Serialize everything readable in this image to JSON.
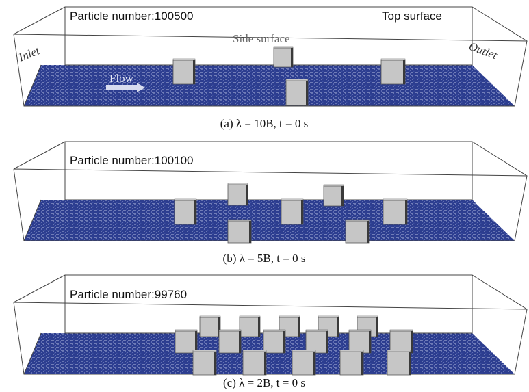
{
  "panels": [
    {
      "particle_label": "Particle number:100500",
      "caption": "(a) λ = 10B, t = 0 s"
    },
    {
      "particle_label": "Particle number:100100",
      "caption": "(b) λ = 5B, t = 0 s"
    },
    {
      "particle_label": "Particle number:99760",
      "caption": "(c) λ = 2B, t = 0 s"
    }
  ],
  "labels": {
    "top_surface": "Top surface",
    "side_surface": "Side surface",
    "inlet": "Inlet",
    "outlet": "Outlet",
    "flow": "Flow"
  }
}
